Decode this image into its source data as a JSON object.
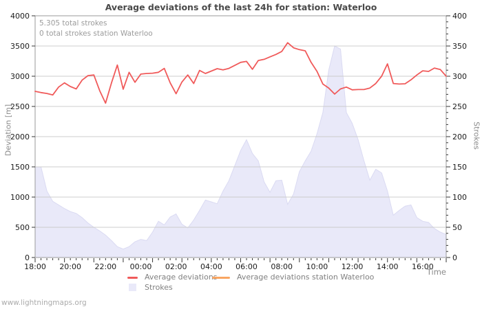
{
  "page": {
    "watermark": "www.lightningmaps.org"
  },
  "chart_data": {
    "type": "line",
    "title": "Average deviations of the last 24h for station: Waterloo",
    "annotations": [
      "5.305 total strokes",
      "0 total strokes station Waterloo"
    ],
    "grid": true,
    "legend_position": "bottom",
    "colors": {
      "grid": "#cccccc",
      "border": "#9a9a9a",
      "tick": "#333333",
      "text": "#1a1a1a",
      "area_edge": "#dadaf2"
    },
    "x": [
      "18:00",
      "18:20",
      "18:40",
      "19:00",
      "19:20",
      "19:40",
      "20:00",
      "20:20",
      "20:40",
      "21:00",
      "21:20",
      "21:40",
      "22:00",
      "22:20",
      "22:40",
      "23:00",
      "23:20",
      "23:40",
      "00:00",
      "00:20",
      "00:40",
      "01:00",
      "01:20",
      "01:40",
      "02:00",
      "02:20",
      "02:40",
      "03:00",
      "03:20",
      "03:40",
      "04:00",
      "04:20",
      "04:40",
      "05:00",
      "05:20",
      "05:40",
      "06:00",
      "06:20",
      "06:40",
      "07:00",
      "07:20",
      "07:40",
      "08:00",
      "08:20",
      "08:40",
      "09:00",
      "09:20",
      "09:40",
      "10:00",
      "10:20",
      "10:40",
      "11:00",
      "11:20",
      "11:40",
      "12:00",
      "12:20",
      "12:40",
      "13:00",
      "13:20",
      "13:40",
      "14:00",
      "14:20",
      "14:40",
      "15:00",
      "15:20",
      "15:40",
      "16:00",
      "16:20",
      "16:40",
      "17:00",
      "17:20"
    ],
    "series": [
      {
        "name": "Average deviations",
        "shape": "line",
        "axis": "left",
        "color": "#f05a5a",
        "values": [
          2750,
          2730,
          2715,
          2690,
          2820,
          2890,
          2830,
          2790,
          2935,
          3010,
          3020,
          2760,
          2555,
          2890,
          3185,
          2785,
          3065,
          2900,
          3035,
          3045,
          3050,
          3065,
          3130,
          2890,
          2710,
          2905,
          3020,
          2880,
          3095,
          3045,
          3085,
          3125,
          3105,
          3130,
          3180,
          3230,
          3245,
          3115,
          3260,
          3280,
          3320,
          3360,
          3410,
          3555,
          3470,
          3440,
          3420,
          3230,
          3080,
          2870,
          2805,
          2705,
          2790,
          2820,
          2775,
          2780,
          2780,
          2805,
          2880,
          3000,
          3205,
          2880,
          2870,
          2875,
          2940,
          3020,
          3090,
          3080,
          3135,
          3110,
          3000
        ]
      },
      {
        "name": "Average deviations station Waterloo",
        "shape": "line",
        "axis": "left",
        "color": "#f9a561",
        "values": []
      },
      {
        "name": "Strokes",
        "shape": "area",
        "axis": "right",
        "color": "#e9e9f9",
        "values": [
          150,
          150,
          110,
          93,
          87,
          81,
          76,
          73,
          66,
          57,
          50,
          44,
          37,
          28,
          18,
          14,
          18,
          26,
          30,
          28,
          42,
          60,
          54,
          67,
          72,
          55,
          49,
          62,
          78,
          95,
          92,
          89,
          110,
          127,
          152,
          177,
          195,
          172,
          160,
          125,
          108,
          127,
          128,
          88,
          105,
          142,
          160,
          176,
          205,
          240,
          310,
          350,
          345,
          240,
          222,
          195,
          160,
          128,
          146,
          140,
          110,
          70,
          78,
          85,
          87,
          66,
          60,
          58,
          48,
          42,
          38
        ]
      }
    ],
    "left_axis": {
      "label": "Deviation [m]",
      "min": 0,
      "max": 4000,
      "tick_step": 500,
      "tick_labels": [
        "0",
        "500",
        "1000",
        "1500",
        "2000",
        "2500",
        "3000",
        "3500",
        "4000"
      ]
    },
    "right_axis": {
      "label": "Strokes",
      "min": 0,
      "max": 400,
      "tick_step": 50,
      "minor_tick_step": 10,
      "tick_labels": [
        "0",
        "50",
        "100",
        "150",
        "200",
        "250",
        "300",
        "350",
        "400"
      ]
    },
    "x_axis": {
      "label": "Time",
      "tick_labels": [
        "18:00",
        "20:00",
        "22:00",
        "00:00",
        "02:00",
        "04:00",
        "06:00",
        "08:00",
        "10:00",
        "12:00",
        "14:00",
        "16:00"
      ],
      "tick_label_indices": [
        0,
        6,
        12,
        18,
        24,
        30,
        36,
        42,
        48,
        54,
        60,
        66
      ]
    }
  }
}
